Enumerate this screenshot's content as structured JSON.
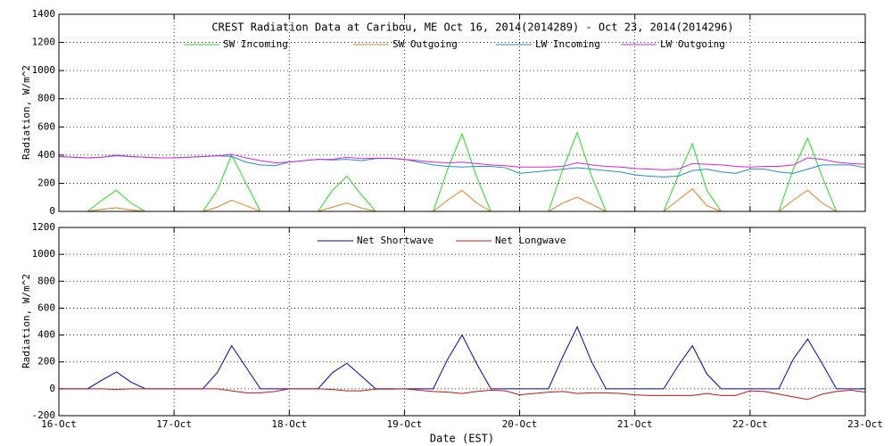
{
  "chart_data": [
    {
      "type": "line",
      "title": "CREST Radiation Data at Caribou, ME   Oct 16, 2014(2014289) - Oct 23, 2014(2014296)",
      "ylabel": "Radiation, W/m^2",
      "grid": true,
      "xlim": [
        0,
        7
      ],
      "ylim": [
        0,
        1400
      ],
      "yticks": [
        0,
        200,
        400,
        600,
        800,
        1000,
        1200,
        1400
      ],
      "x": [
        0,
        0.125,
        0.25,
        0.375,
        0.5,
        0.625,
        0.75,
        0.875,
        1,
        1.125,
        1.25,
        1.375,
        1.5,
        1.625,
        1.75,
        1.875,
        2,
        2.125,
        2.25,
        2.375,
        2.5,
        2.625,
        2.75,
        2.875,
        3,
        3.125,
        3.25,
        3.375,
        3.5,
        3.625,
        3.75,
        3.875,
        4,
        4.125,
        4.25,
        4.375,
        4.5,
        4.625,
        4.75,
        4.875,
        5,
        5.125,
        5.25,
        5.375,
        5.5,
        5.625,
        5.75,
        5.875,
        6,
        6.125,
        6.25,
        6.375,
        6.5,
        6.625,
        6.75,
        6.875,
        7
      ],
      "series": [
        {
          "name": "SW Incoming",
          "color": "#22dd22",
          "values": [
            0,
            0,
            0,
            80,
            150,
            60,
            0,
            0,
            0,
            0,
            0,
            150,
            400,
            200,
            0,
            0,
            0,
            0,
            0,
            150,
            250,
            120,
            0,
            0,
            0,
            0,
            0,
            300,
            550,
            250,
            0,
            0,
            0,
            0,
            0,
            300,
            560,
            250,
            0,
            0,
            0,
            0,
            0,
            250,
            480,
            150,
            0,
            0,
            0,
            0,
            0,
            300,
            520,
            250,
            0,
            0,
            0
          ]
        },
        {
          "name": "SW Outgoing",
          "color": "#e08020",
          "values": [
            0,
            0,
            0,
            15,
            25,
            10,
            0,
            0,
            0,
            0,
            0,
            30,
            80,
            40,
            0,
            0,
            0,
            0,
            0,
            30,
            60,
            25,
            0,
            0,
            0,
            0,
            0,
            80,
            150,
            60,
            0,
            0,
            0,
            0,
            0,
            60,
            100,
            50,
            0,
            0,
            0,
            0,
            0,
            80,
            160,
            40,
            0,
            0,
            0,
            0,
            0,
            80,
            150,
            60,
            0,
            0,
            0
          ]
        },
        {
          "name": "LW Incoming",
          "color": "#1e8ed0",
          "values": [
            390,
            385,
            380,
            385,
            395,
            390,
            385,
            380,
            380,
            385,
            390,
            395,
            390,
            350,
            330,
            325,
            350,
            360,
            370,
            365,
            370,
            360,
            375,
            375,
            370,
            350,
            330,
            320,
            315,
            320,
            320,
            310,
            270,
            280,
            290,
            300,
            310,
            300,
            290,
            280,
            260,
            250,
            245,
            250,
            290,
            300,
            280,
            270,
            300,
            300,
            280,
            270,
            300,
            330,
            330,
            330,
            310
          ]
        },
        {
          "name": "LW Outgoing",
          "color": "#e020e0",
          "values": [
            390,
            385,
            380,
            385,
            400,
            390,
            385,
            380,
            380,
            385,
            390,
            395,
            405,
            380,
            360,
            345,
            350,
            360,
            370,
            370,
            385,
            375,
            378,
            378,
            370,
            360,
            350,
            345,
            350,
            340,
            330,
            325,
            315,
            315,
            315,
            320,
            345,
            330,
            320,
            315,
            305,
            300,
            295,
            300,
            340,
            335,
            330,
            320,
            315,
            320,
            320,
            330,
            380,
            370,
            350,
            340,
            335
          ]
        }
      ]
    },
    {
      "type": "line",
      "xlabel": "Date (EST)",
      "ylabel": "Radiation, W/m^2",
      "grid": true,
      "xlim": [
        0,
        7
      ],
      "ylim": [
        -200,
        1200
      ],
      "yticks": [
        -200,
        0,
        200,
        400,
        600,
        800,
        1000,
        1200
      ],
      "xticks": [
        {
          "value": 0,
          "label": "16-Oct"
        },
        {
          "value": 1,
          "label": "17-Oct"
        },
        {
          "value": 2,
          "label": "18-Oct"
        },
        {
          "value": 3,
          "label": "19-Oct"
        },
        {
          "value": 4,
          "label": "20-Oct"
        },
        {
          "value": 5,
          "label": "21-Oct"
        },
        {
          "value": 6,
          "label": "22-Oct"
        },
        {
          "value": 7,
          "label": "23-Oct"
        }
      ],
      "x": [
        0,
        0.125,
        0.25,
        0.375,
        0.5,
        0.625,
        0.75,
        0.875,
        1,
        1.125,
        1.25,
        1.375,
        1.5,
        1.625,
        1.75,
        1.875,
        2,
        2.125,
        2.25,
        2.375,
        2.5,
        2.625,
        2.75,
        2.875,
        3,
        3.125,
        3.25,
        3.375,
        3.5,
        3.625,
        3.75,
        3.875,
        4,
        4.125,
        4.25,
        4.375,
        4.5,
        4.625,
        4.75,
        4.875,
        5,
        5.125,
        5.25,
        5.375,
        5.5,
        5.625,
        5.75,
        5.875,
        6,
        6.125,
        6.25,
        6.375,
        6.5,
        6.625,
        6.75,
        6.875,
        7
      ],
      "series": [
        {
          "name": "Net Shortwave",
          "color": "#0000c0",
          "values": [
            0,
            0,
            0,
            65,
            125,
            50,
            0,
            0,
            0,
            0,
            0,
            120,
            320,
            160,
            0,
            0,
            0,
            0,
            0,
            120,
            190,
            95,
            0,
            0,
            0,
            0,
            0,
            220,
            400,
            190,
            0,
            0,
            0,
            0,
            0,
            240,
            460,
            200,
            0,
            0,
            0,
            0,
            0,
            170,
            320,
            110,
            0,
            0,
            0,
            0,
            0,
            220,
            370,
            190,
            0,
            0,
            0
          ]
        },
        {
          "name": "Net Longwave",
          "color": "#d01010",
          "values": [
            0,
            0,
            0,
            0,
            -5,
            0,
            0,
            0,
            0,
            0,
            0,
            0,
            -15,
            -30,
            -30,
            -20,
            0,
            0,
            0,
            -5,
            -15,
            -15,
            -3,
            -3,
            0,
            -10,
            -20,
            -25,
            -35,
            -20,
            -10,
            -15,
            -45,
            -35,
            -25,
            -20,
            -35,
            -30,
            -30,
            -35,
            -45,
            -50,
            -50,
            -50,
            -50,
            -35,
            -50,
            -50,
            -15,
            -20,
            -40,
            -60,
            -80,
            -40,
            -20,
            -10,
            -25
          ]
        }
      ]
    }
  ]
}
